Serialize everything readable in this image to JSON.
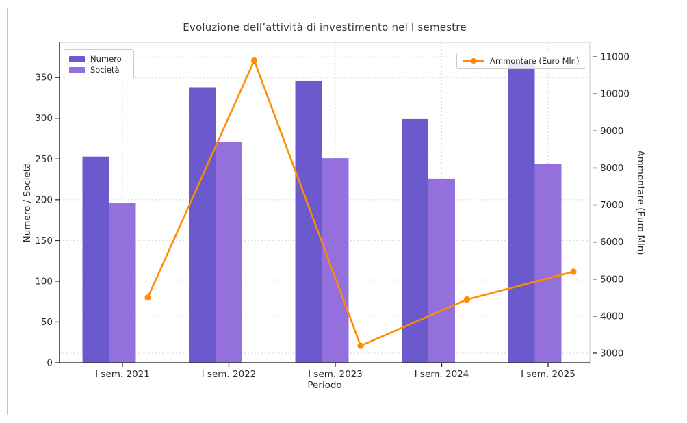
{
  "figure": {
    "title": "Evoluzione dell’attività di investimento nel I semestre"
  },
  "chart_data": {
    "type": "bar",
    "subtype": "grouped-bars-with-line-dual-axis",
    "title": "Evoluzione dell’attività di investimento nel I semestre",
    "xlabel": "Periodo",
    "ylabel_left": "Numero / Società",
    "ylabel_right": "Ammontare (Euro Mln)",
    "categories": [
      "I sem. 2021",
      "I sem. 2022",
      "I sem. 2023",
      "I sem. 2024",
      "I sem. 2025"
    ],
    "series": [
      {
        "name": "Numero",
        "type": "bar",
        "axis": "left",
        "color": "#6A5ACD",
        "values": [
          253,
          338,
          346,
          299,
          368
        ]
      },
      {
        "name": "Società",
        "type": "bar",
        "axis": "left",
        "color": "#9370DB",
        "values": [
          196,
          271,
          251,
          226,
          244
        ]
      },
      {
        "name": "Ammontare (Euro Mln)",
        "type": "line",
        "axis": "right",
        "color": "#FF8C00",
        "marker": "circle",
        "values": [
          4500,
          10900,
          3200,
          4450,
          5200
        ]
      }
    ],
    "left_axis": {
      "ticks": [
        0,
        50,
        100,
        150,
        200,
        250,
        300,
        350
      ],
      "min": 0,
      "max": 393
    },
    "right_axis": {
      "ticks": [
        3000,
        4000,
        5000,
        6000,
        7000,
        8000,
        9000,
        10000,
        11000
      ],
      "min": 2741,
      "max": 11390
    },
    "grid": true,
    "grid_style": "dashed",
    "legend_left_entries": [
      "Numero",
      "Società"
    ],
    "legend_right_entries": [
      "Ammontare (Euro Mln)"
    ],
    "colors": {
      "numero": "#6A5ACD",
      "societa": "#9370DB",
      "ammontare": "#FF8C00",
      "grid": "#d6d6d6",
      "spine_dark": "#3a3a3a",
      "spine_light": "#c9c9c9",
      "text": "#2b2b2b"
    }
  }
}
